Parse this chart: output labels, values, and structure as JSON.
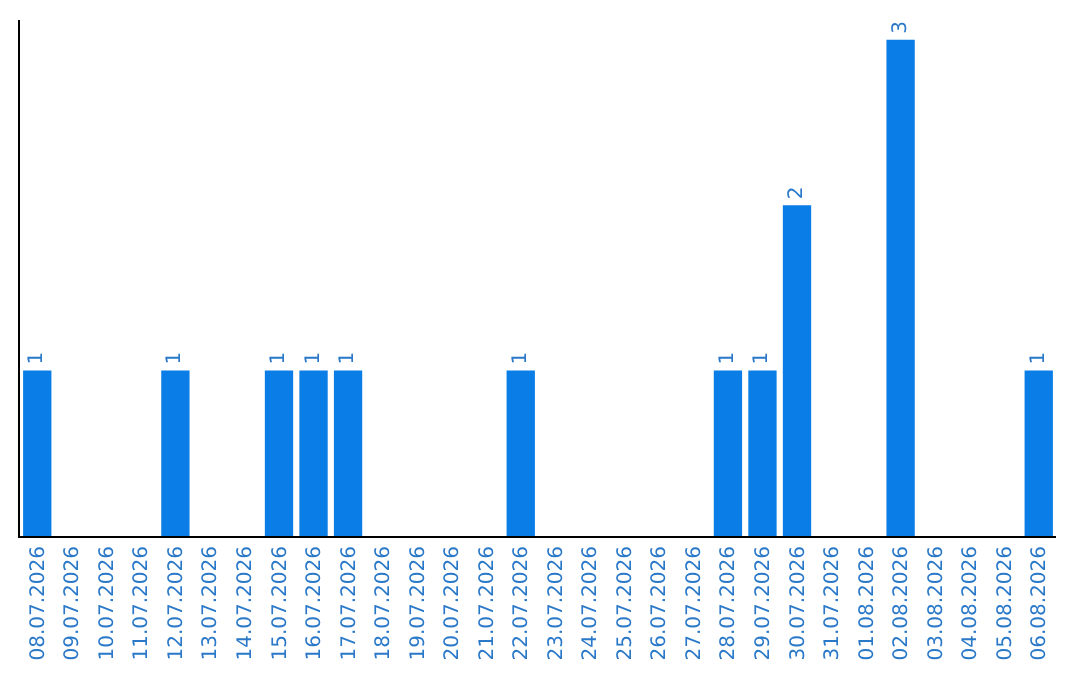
{
  "chart_data": {
    "type": "bar",
    "categories": [
      "08.07.2026",
      "09.07.2026",
      "10.07.2026",
      "11.07.2026",
      "12.07.2026",
      "13.07.2026",
      "14.07.2026",
      "15.07.2026",
      "16.07.2026",
      "17.07.2026",
      "18.07.2026",
      "19.07.2026",
      "20.07.2026",
      "21.07.2026",
      "22.07.2026",
      "23.07.2026",
      "24.07.2026",
      "25.07.2026",
      "26.07.2026",
      "27.07.2026",
      "28.07.2026",
      "29.07.2026",
      "30.07.2026",
      "31.07.2026",
      "01.08.2026",
      "02.08.2026",
      "03.08.2026",
      "04.08.2026",
      "05.08.2026",
      "06.08.2026"
    ],
    "values": [
      1,
      0,
      0,
      0,
      1,
      0,
      0,
      1,
      1,
      1,
      0,
      0,
      0,
      0,
      1,
      0,
      0,
      0,
      0,
      0,
      1,
      1,
      2,
      0,
      0,
      3,
      0,
      0,
      0,
      1
    ],
    "value_labels": [
      "1",
      null,
      null,
      null,
      "1",
      null,
      null,
      "1",
      "1",
      "1",
      null,
      null,
      null,
      null,
      "1",
      null,
      null,
      null,
      null,
      null,
      "1",
      "1",
      "2",
      null,
      null,
      "3",
      null,
      null,
      null,
      "1"
    ],
    "color": "#0a7de6",
    "grid": false,
    "legend": false,
    "tick_labels": "x"
  }
}
